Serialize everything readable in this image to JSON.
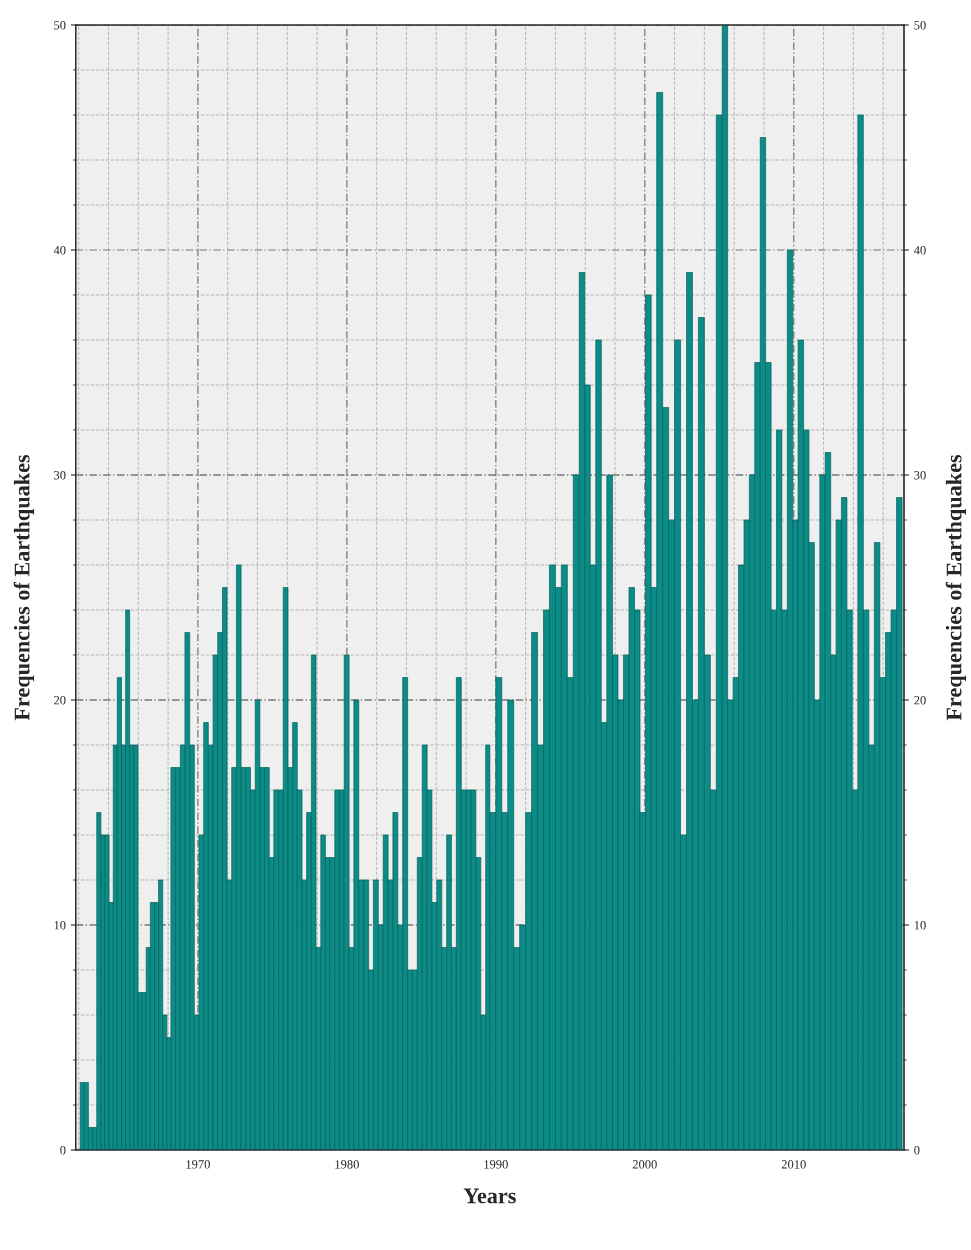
{
  "chart_data": {
    "type": "bar",
    "xlabel": "Years",
    "ylabel": "Frequencies of Earthquakes",
    "y2label": "Frequencies of Earthquakes",
    "x": [
      1962.1,
      1962.38,
      1962.65,
      1962.93,
      1963.21,
      1963.49,
      1963.76,
      1964.04,
      1964.32,
      1964.59,
      1964.87,
      1965.15,
      1965.42,
      1965.7,
      1965.98,
      1966.26,
      1966.53,
      1966.81,
      1967.09,
      1967.36,
      1967.64,
      1967.92,
      1968.19,
      1968.5,
      1968.82,
      1969.13,
      1969.45,
      1969.76,
      1970.07,
      1970.39,
      1970.7,
      1971.02,
      1971.33,
      1971.65,
      1971.96,
      1972.27,
      1972.59,
      1972.9,
      1973.22,
      1973.53,
      1973.85,
      1974.16,
      1974.47,
      1974.79,
      1975.1,
      1975.42,
      1975.73,
      1976.05,
      1976.36,
      1976.67,
      1976.99,
      1977.3,
      1977.62,
      1977.93,
      1978.25,
      1978.56,
      1978.87,
      1979.19,
      1979.5,
      1979.82,
      1980.15,
      1980.47,
      1980.8,
      1981.13,
      1981.46,
      1981.78,
      1982.11,
      1982.44,
      1982.77,
      1983.09,
      1983.42,
      1983.75,
      1984.08,
      1984.4,
      1984.73,
      1985.06,
      1985.39,
      1985.71,
      1986.04,
      1986.37,
      1986.7,
      1987.02,
      1987.35,
      1987.68,
      1988.01,
      1988.33,
      1988.66,
      1988.99,
      1989.32,
      1989.6,
      1990.0,
      1990.4,
      1990.8,
      1991.2,
      1991.6,
      1992.0,
      1992.4,
      1992.8,
      1993.2,
      1993.6,
      1994.0,
      1994.4,
      1994.8,
      1995.2,
      1995.6,
      1995.97,
      1996.34,
      1996.71,
      1997.08,
      1997.45,
      1997.83,
      1998.2,
      1998.57,
      1998.94,
      1999.31,
      1999.68,
      2000.05,
      2000.43,
      2000.8,
      2001.2,
      2001.6,
      2002.0,
      2002.4,
      2002.8,
      2003.2,
      2003.6,
      2004.0,
      2004.4,
      2004.8,
      2005.2,
      2005.56,
      2005.93,
      2006.29,
      2006.66,
      2007.02,
      2007.38,
      2007.75,
      2008.11,
      2008.48,
      2008.84,
      2009.2,
      2009.57,
      2009.93,
      2010.29,
      2010.66,
      2011.02,
      2011.38,
      2011.75,
      2012.11,
      2012.48,
      2012.84,
      2013.2,
      2013.57,
      2013.93,
      2014.3,
      2014.67,
      2015.04,
      2015.41,
      2015.78,
      2016.16,
      2016.53,
      2016.9
    ],
    "series": [
      {
        "color": "#0b8c87",
        "values": [
          3,
          3,
          1,
          1,
          15,
          14,
          14,
          11,
          18,
          21,
          18,
          24,
          18,
          18,
          7,
          7,
          9,
          11,
          11,
          12,
          6,
          5,
          17,
          17,
          18,
          23,
          18,
          6,
          14,
          19,
          18,
          22,
          23,
          25,
          12,
          17,
          26,
          17,
          17,
          16,
          20,
          17,
          17,
          13,
          16,
          16,
          25,
          17,
          19,
          16,
          12,
          15,
          22,
          9,
          14,
          13,
          13,
          16,
          16,
          22,
          9,
          20,
          12,
          12,
          8,
          12,
          10,
          14,
          12,
          15,
          10,
          21,
          8,
          8,
          13,
          18,
          16,
          11,
          12,
          9,
          14,
          9,
          21,
          16,
          16,
          16,
          13,
          6,
          18,
          15,
          21,
          15,
          20,
          9,
          10,
          15,
          23,
          18,
          24,
          26,
          25,
          26,
          21,
          30,
          39,
          34,
          26,
          36,
          19,
          30,
          22,
          20,
          22,
          25,
          24,
          15,
          38,
          25,
          47,
          33,
          28,
          36,
          14,
          39,
          20,
          37,
          22,
          16,
          46,
          50,
          20,
          21,
          26,
          28,
          30,
          35,
          45,
          35,
          24,
          32,
          24,
          40,
          28,
          36,
          32,
          27,
          20,
          30,
          31,
          22,
          28,
          29,
          24,
          16,
          46,
          24,
          18,
          27,
          21,
          23,
          24,
          29
        ]
      }
    ],
    "xlim": [
      1961.8,
      2017.4
    ],
    "xticks": [
      1970,
      1980,
      1990,
      2000,
      2010
    ],
    "ylim": [
      0,
      50
    ],
    "yticks": [
      0,
      10,
      20,
      30,
      40,
      50
    ],
    "y2lim": [
      0,
      50
    ],
    "y2ticks": [
      0,
      10,
      20,
      30,
      40,
      50
    ],
    "grid": true,
    "legend": false
  }
}
